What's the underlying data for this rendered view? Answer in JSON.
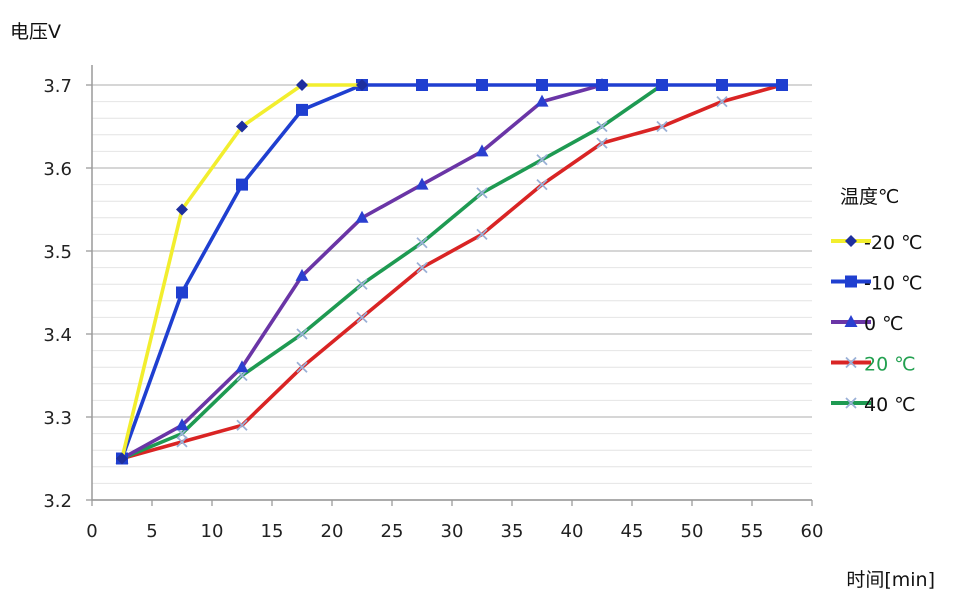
{
  "chart_data": {
    "type": "line",
    "ylabel": "电压V",
    "xlabel": "时间[min]",
    "xlim": [
      0,
      60
    ],
    "ylim": [
      3.2,
      3.7
    ],
    "xticks": [
      "0",
      "5",
      "10",
      "15",
      "20",
      "25",
      "30",
      "35",
      "40",
      "45",
      "50",
      "55",
      "60"
    ],
    "yticks": [
      "3.2",
      "3.3",
      "3.4",
      "3.5",
      "3.6",
      "3.7"
    ],
    "grid": "horizontal",
    "legend": {
      "title": "温度℃",
      "placement": "right"
    },
    "series": [
      {
        "name": "-20 ℃",
        "color": "#f2ee2e",
        "marker": "diamond",
        "marker_color": "#1e2f9e",
        "x": [
          2.5,
          7.5,
          12.5,
          17.5,
          22.5
        ],
        "y": [
          3.25,
          3.55,
          3.65,
          3.7,
          3.7
        ]
      },
      {
        "name": "-10 ℃",
        "color": "#1f3fd0",
        "marker": "square",
        "marker_color": "#1f3fd0",
        "x": [
          2.5,
          7.5,
          12.5,
          17.5,
          22.5,
          27.5,
          32.5,
          37.5,
          42.5,
          47.5,
          52.5,
          57.5
        ],
        "y": [
          3.25,
          3.45,
          3.58,
          3.67,
          3.7,
          3.7,
          3.7,
          3.7,
          3.7,
          3.7,
          3.7,
          3.7
        ]
      },
      {
        "name": "0 ℃",
        "color": "#6a35a6",
        "marker": "triangle",
        "marker_color": "#2a3fd0",
        "x": [
          2.5,
          7.5,
          12.5,
          17.5,
          22.5,
          27.5,
          32.5,
          37.5,
          42.5
        ],
        "y": [
          3.25,
          3.29,
          3.36,
          3.47,
          3.54,
          3.58,
          3.62,
          3.68,
          3.7
        ]
      },
      {
        "name": "20 ℃",
        "name_color": "#22a050",
        "color": "#d92424",
        "marker": "x",
        "marker_color": "#9ab0d6",
        "x": [
          2.5,
          7.5,
          12.5,
          17.5,
          22.5,
          27.5,
          32.5,
          37.5,
          42.5,
          47.5,
          52.5,
          57.5
        ],
        "y": [
          3.25,
          3.27,
          3.29,
          3.36,
          3.42,
          3.48,
          3.52,
          3.58,
          3.63,
          3.65,
          3.68,
          3.7
        ]
      },
      {
        "name": "40 ℃",
        "color": "#1e9a52",
        "marker": "x",
        "marker_color": "#9ab0d6",
        "x": [
          2.5,
          7.5,
          12.5,
          17.5,
          22.5,
          27.5,
          32.5,
          37.5,
          42.5,
          47.5
        ],
        "y": [
          3.25,
          3.28,
          3.35,
          3.4,
          3.46,
          3.51,
          3.57,
          3.61,
          3.65,
          3.7
        ]
      }
    ]
  }
}
